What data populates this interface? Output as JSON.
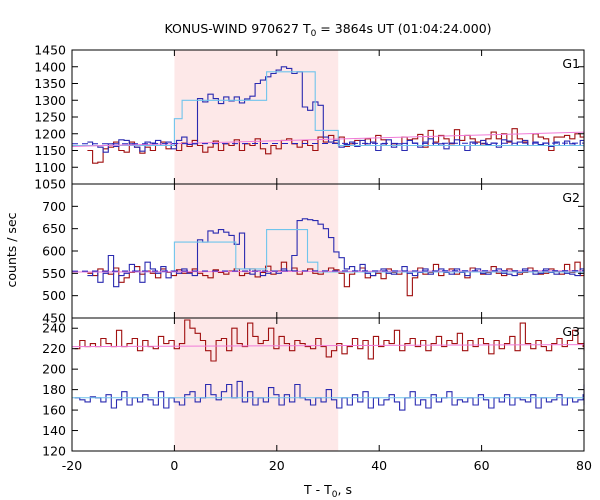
{
  "title": "KONUS-WIND 970627 T",
  "title_sub": "0",
  "title_rest": " = 3864s UT (01:04:24.000)",
  "xlabel": "T - T",
  "xlabel_sub": "0",
  "xlabel_rest": ", s",
  "ylabel": "counts / sec",
  "colors": {
    "dark_red": "#a01010",
    "blue": "#2a2ab0",
    "light_blue": "#70c4ec",
    "pink": "#f07ad8",
    "dashed_blue": "#2020c0",
    "highlight": "#fde8e8"
  },
  "chart_data": {
    "type": "line",
    "x_range": [
      -20,
      80
    ],
    "x_ticks": [
      -20,
      0,
      20,
      40,
      60,
      80
    ],
    "highlight_interval": [
      0,
      32
    ],
    "panels": [
      {
        "label": "G1",
        "ylim": [
          1050,
          1450
        ],
        "y_ticks": [
          1050,
          1100,
          1150,
          1200,
          1250,
          1300,
          1350,
          1400,
          1450
        ],
        "series": [
          {
            "color_key": "dark_red",
            "style": "step",
            "x0": -17,
            "dx": 1.024,
            "values": [
              1150,
              1112,
              1115,
              1155,
              1160,
              1175,
              1150,
              1145,
              1175,
              1160,
              1142,
              1160,
              1150,
              1165,
              1175,
              1155,
              1165,
              1150,
              1172,
              1162,
              1180,
              1165,
              1145,
              1160,
              1178,
              1150,
              1170,
              1165,
              1182,
              1150,
              1170,
              1165,
              1185,
              1155,
              1140,
              1165,
              1155,
              1180,
              1185,
              1170,
              1160,
              1180,
              1165,
              1150,
              1190,
              1175,
              1195,
              1172,
              1190,
              1162,
              1170,
              1180,
              1165,
              1185,
              1175,
              1195,
              1182,
              1165,
              1170,
              1165,
              1190,
              1182,
              1185,
              1198,
              1160,
              1210,
              1175,
              1195,
              1185,
              1170,
              1212,
              1180,
              1195,
              1185,
              1175,
              1170,
              1185,
              1205,
              1185,
              1200,
              1175,
              1215,
              1185,
              1175,
              1165,
              1200,
              1190,
              1185,
              1150,
              1190,
              1190,
              1195,
              1185,
              1200,
              1190,
              1200,
              1205
            ]
          },
          {
            "color_key": "blue",
            "style": "step",
            "x0": -17,
            "dx": 1.024,
            "values": [
              1175,
              1165,
              1160,
              1145,
              1170,
              1162,
              1182,
              1180,
              1170,
              1160,
              1148,
              1175,
              1172,
              1180,
              1165,
              1175,
              1155,
              1180,
              1190,
              1168,
              1170,
              1305,
              1295,
              1318,
              1305,
              1290,
              1310,
              1298,
              1310,
              1292,
              1304,
              1312,
              1350,
              1360,
              1370,
              1380,
              1390,
              1400,
              1395,
              1380,
              1385,
              1280,
              1270,
              1295,
              1285,
              1190,
              1175,
              1180,
              1160,
              1168,
              1175,
              1162,
              1180,
              1170,
              1175,
              1150,
              1170,
              1182,
              1160,
              1170,
              1150,
              1180,
              1172,
              1160,
              1175,
              1185,
              1165,
              1170,
              1155,
              1172,
              1182,
              1165,
              1150,
              1175,
              1165,
              1180,
              1168,
              1172,
              1160,
              1182,
              1178,
              1165,
              1175,
              1180,
              1165,
              1175,
              1168,
              1172,
              1162,
              1175,
              1165,
              1178,
              1170,
              1165,
              1180,
              1160,
              1165
            ]
          },
          {
            "color_key": "light_blue",
            "style": "step",
            "points": [
              [
                -20,
                1165
              ],
              [
                0,
                1165
              ],
              [
                0,
                1245
              ],
              [
                1.5,
                1245
              ],
              [
                1.5,
                1300
              ],
              [
                18,
                1300
              ],
              [
                18,
                1385
              ],
              [
                27.5,
                1385
              ],
              [
                27.5,
                1210
              ],
              [
                32,
                1210
              ],
              [
                32,
                1165
              ],
              [
                80,
                1165
              ]
            ]
          },
          {
            "color_key": "pink",
            "style": "line",
            "points": [
              [
                -20,
                1162
              ],
              [
                80,
                1205
              ]
            ]
          },
          {
            "color_key": "dashed_blue",
            "style": "dashed",
            "points": [
              [
                -20,
                1170
              ],
              [
                80,
                1172
              ]
            ]
          }
        ]
      },
      {
        "label": "G2",
        "ylim": [
          450,
          750
        ],
        "y_ticks": [
          450,
          500,
          550,
          600,
          650,
          700
        ],
        "series": [
          {
            "color_key": "dark_red",
            "style": "step",
            "x0": -17,
            "dx": 1.024,
            "values": [
              550,
              545,
              560,
              555,
              548,
              562,
              530,
              540,
              552,
              565,
              548,
              555,
              550,
              540,
              560,
              552,
              545,
              558,
              550,
              552,
              560,
              550,
              545,
              540,
              558,
              552,
              548,
              555,
              560,
              545,
              550,
              560,
              542,
              552,
              566,
              548,
              555,
              575,
              555,
              562,
              548,
              555,
              560,
              550,
              548,
              555,
              562,
              558,
              550,
              520,
              548,
              555,
              562,
              540,
              545,
              550,
              538,
              560,
              552,
              548,
              555,
              500,
              540,
              562,
              548,
              552,
              570,
              545,
              555,
              560,
              548,
              552,
              540,
              562,
              555,
              548,
              552,
              565,
              550,
              545,
              560,
              555,
              548,
              552,
              562,
              555,
              548,
              550,
              560,
              555,
              548,
              570,
              552,
              575,
              545,
              560,
              600
            ]
          },
          {
            "color_key": "blue",
            "style": "step",
            "x0": -17,
            "dx": 1.024,
            "values": [
              545,
              555,
              530,
              550,
              590,
              520,
              545,
              550,
              570,
              555,
              530,
              575,
              560,
              550,
              565,
              540,
              555,
              550,
              560,
              550,
              545,
              625,
              620,
              645,
              640,
              648,
              642,
              635,
              615,
              640,
              560,
              548,
              555,
              545,
              550,
              555,
              550,
              560,
              555,
              590,
              668,
              672,
              670,
              668,
              660,
              650,
              630,
              598,
              585,
              560,
              565,
              555,
              570,
              550,
              545,
              555,
              560,
              550,
              548,
              555,
              565,
              550,
              545,
              552,
              560,
              548,
              555,
              560,
              552,
              548,
              560,
              552,
              545,
              555,
              560,
              550,
              548,
              555,
              560,
              550,
              548,
              545,
              552,
              560,
              555,
              548,
              550,
              560,
              552,
              548,
              555,
              550,
              548,
              545,
              560,
              552,
              550
            ]
          },
          {
            "color_key": "light_blue",
            "style": "step",
            "points": [
              [
                -20,
                553
              ],
              [
                0,
                553
              ],
              [
                0,
                620
              ],
              [
                12,
                620
              ],
              [
                12,
                560
              ],
              [
                18,
                560
              ],
              [
                18,
                648
              ],
              [
                26,
                648
              ],
              [
                26,
                575
              ],
              [
                28,
                575
              ],
              [
                28,
                553
              ],
              [
                80,
                553
              ]
            ]
          },
          {
            "color_key": "pink",
            "style": "line",
            "points": [
              [
                -20,
                553
              ],
              [
                80,
                556
              ]
            ]
          },
          {
            "color_key": "dashed_blue",
            "style": "dashed",
            "points": [
              [
                -20,
                555
              ],
              [
                80,
                556
              ]
            ]
          }
        ]
      },
      {
        "label": "G3",
        "ylim": [
          120,
          250
        ],
        "y_ticks": [
          120,
          140,
          160,
          180,
          200,
          220,
          240
        ],
        "series": [
          {
            "color_key": "dark_red",
            "style": "step",
            "x0": -19.5,
            "dx": 1.024,
            "values": [
              220,
              228,
              222,
              225,
              222,
              230,
              225,
              222,
              238,
              222,
              225,
              230,
              218,
              228,
              222,
              220,
              232,
              225,
              228,
              220,
              225,
              248,
              240,
              235,
              228,
              218,
              208,
              228,
              230,
              218,
              240,
              225,
              222,
              245,
              232,
              225,
              228,
              240,
              220,
              232,
              225,
              218,
              228,
              225,
              222,
              220,
              230,
              222,
              212,
              218,
              225,
              215,
              222,
              230,
              220,
              228,
              210,
              232,
              222,
              228,
              225,
              238,
              218,
              225,
              230,
              222,
              228,
              218,
              225,
              232,
              222,
              228,
              225,
              235,
              218,
              228,
              222,
              230,
              225,
              215,
              228,
              220,
              225,
              232,
              218,
              245,
              225,
              220,
              228,
              222,
              218,
              225,
              230,
              222,
              228,
              238,
              225,
              222,
              228,
              218
            ]
          },
          {
            "color_key": "blue",
            "style": "step",
            "x0": -19.5,
            "dx": 1.024,
            "values": [
              172,
              170,
              168,
              173,
              172,
              168,
              175,
              162,
              170,
              178,
              165,
              172,
              168,
              175,
              170,
              165,
              178,
              162,
              172,
              168,
              165,
              175,
              178,
              168,
              172,
              185,
              175,
              170,
              178,
              185,
              172,
              188,
              168,
              178,
              165,
              172,
              168,
              182,
              175,
              165,
              175,
              168,
              185,
              172,
              170,
              165,
              172,
              168,
              180,
              170,
              162,
              172,
              165,
              175,
              168,
              178,
              162,
              172,
              165,
              170,
              175,
              168,
              160,
              172,
              178,
              165,
              170,
              162,
              175,
              168,
              172,
              178,
              165,
              170,
              168,
              172,
              165,
              175,
              170,
              162,
              172,
              168,
              175,
              165,
              172,
              170,
              168,
              175,
              162,
              172,
              168,
              170,
              175,
              165,
              172,
              168,
              170,
              175,
              165,
              185
            ]
          },
          {
            "color_key": "light_blue",
            "style": "line",
            "points": [
              [
                -20,
                172
              ],
              [
                80,
                172
              ]
            ]
          },
          {
            "color_key": "pink",
            "style": "line",
            "points": [
              [
                -20,
                222
              ],
              [
                80,
                224
              ]
            ]
          }
        ]
      }
    ]
  }
}
